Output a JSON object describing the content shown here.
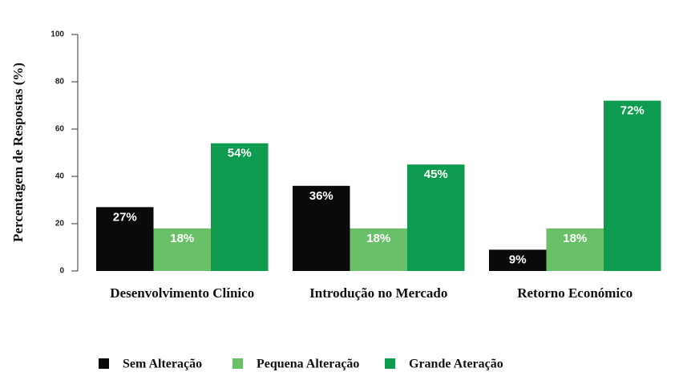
{
  "chart_data": {
    "type": "bar",
    "ylabel": "Percentagem de Respostas (%)",
    "categories": [
      "Desenvolvimento Clínico",
      "Introdução no Mercado",
      "Retorno Económico"
    ],
    "series": [
      {
        "name": "Sem Alteração",
        "color": "#0a0a0a",
        "values": [
          27,
          36,
          9
        ],
        "value_labels": [
          "27%",
          "36%",
          "9%"
        ]
      },
      {
        "name": "Pequena Alteração",
        "color": "#6abf69",
        "values": [
          18,
          18,
          18
        ],
        "value_labels": [
          "18%",
          "18%",
          "18%"
        ]
      },
      {
        "name": "Grande Ateração",
        "color": "#0f9b4f",
        "values": [
          54,
          45,
          72
        ],
        "value_labels": [
          "54%",
          "45%",
          "72%"
        ]
      }
    ],
    "ylim": [
      0,
      100
    ],
    "yticks": [
      0,
      20,
      40,
      60,
      80,
      100
    ],
    "grid": false,
    "legend": "bottom"
  }
}
